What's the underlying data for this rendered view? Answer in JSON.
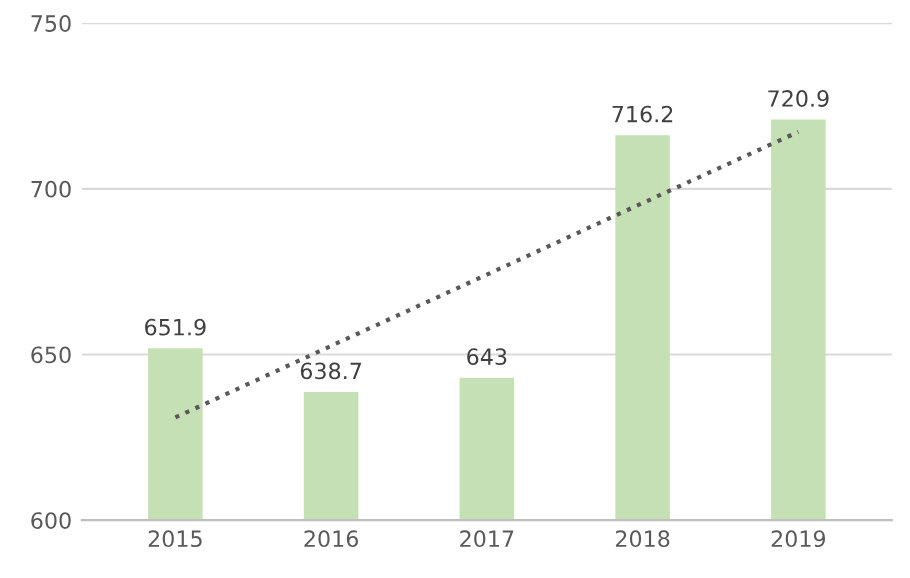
{
  "chart_data": {
    "type": "bar",
    "categories": [
      "2015",
      "2016",
      "2017",
      "2018",
      "2019"
    ],
    "series": [
      {
        "color": "#c5e0b4",
        "values": [
          651.9,
          638.7,
          643,
          716.2,
          720.9
        ],
        "value_labels": [
          "651.9",
          "638.7",
          "643",
          "716.2",
          "720.9"
        ]
      },
      {
        "type": "line",
        "color": "#595959",
        "line_style": "dotted",
        "values": [
          631.0,
          652.6,
          674.1,
          695.7,
          717.2
        ]
      }
    ],
    "ylim": [
      600,
      750
    ],
    "yticks": [
      600,
      650,
      700,
      750
    ],
    "grid": "y",
    "legend": false
  }
}
